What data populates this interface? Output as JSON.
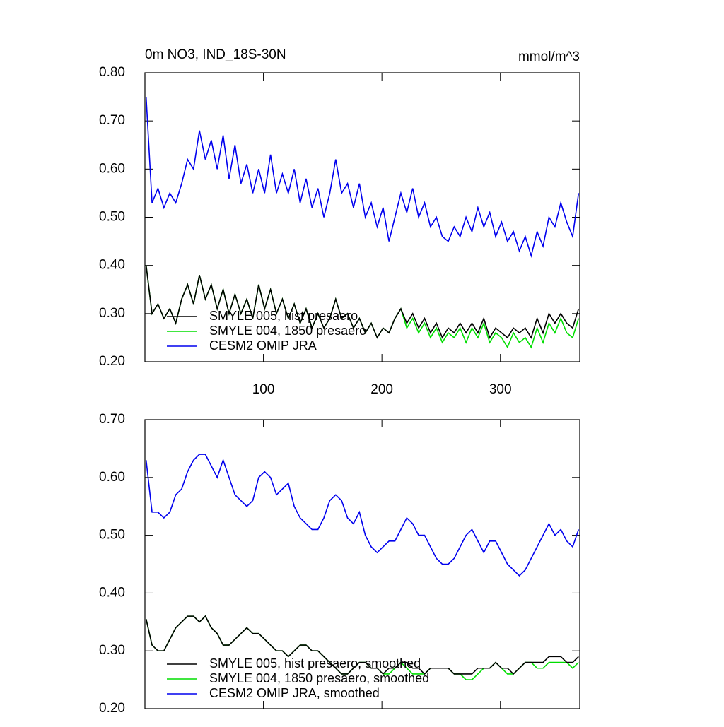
{
  "chart_data": [
    {
      "type": "line",
      "title": "0m NO3, IND_18S-30N",
      "units": "mmol/m^3",
      "x": [
        1,
        6,
        11,
        16,
        21,
        26,
        31,
        36,
        41,
        46,
        51,
        56,
        61,
        66,
        71,
        76,
        81,
        86,
        91,
        96,
        101,
        106,
        111,
        116,
        121,
        126,
        131,
        136,
        141,
        146,
        151,
        156,
        161,
        166,
        171,
        176,
        181,
        186,
        191,
        196,
        201,
        206,
        211,
        216,
        221,
        226,
        231,
        236,
        241,
        246,
        251,
        256,
        261,
        266,
        271,
        276,
        281,
        286,
        291,
        296,
        301,
        306,
        311,
        316,
        321,
        326,
        331,
        336,
        341,
        346,
        351,
        356,
        361,
        366
      ],
      "xlim": [
        0,
        367
      ],
      "xticks": [
        100,
        200,
        300
      ],
      "xtick_labels": true,
      "ylim": [
        0.2,
        0.8
      ],
      "yticks": [
        {
          "value": 0.2,
          "label": "0.20"
        },
        {
          "value": 0.3,
          "label": "0.30"
        },
        {
          "value": 0.4,
          "label": "0.40"
        },
        {
          "value": 0.5,
          "label": "0.50"
        },
        {
          "value": 0.6,
          "label": "0.60"
        },
        {
          "value": 0.7,
          "label": "0.70"
        },
        {
          "value": 0.8,
          "label": "0.80"
        }
      ],
      "legend": "lower left",
      "series": [
        {
          "name": "SMYLE 005, hist presaero",
          "color": "#000000",
          "values": [
            0.4,
            0.3,
            0.32,
            0.29,
            0.31,
            0.28,
            0.33,
            0.36,
            0.32,
            0.38,
            0.33,
            0.36,
            0.31,
            0.35,
            0.3,
            0.34,
            0.3,
            0.33,
            0.29,
            0.36,
            0.31,
            0.35,
            0.3,
            0.33,
            0.29,
            0.32,
            0.28,
            0.31,
            0.27,
            0.3,
            0.27,
            0.29,
            0.33,
            0.29,
            0.3,
            0.27,
            0.29,
            0.26,
            0.28,
            0.25,
            0.27,
            0.26,
            0.29,
            0.31,
            0.28,
            0.3,
            0.27,
            0.29,
            0.26,
            0.28,
            0.25,
            0.27,
            0.26,
            0.28,
            0.26,
            0.28,
            0.26,
            0.29,
            0.25,
            0.27,
            0.26,
            0.25,
            0.27,
            0.26,
            0.27,
            0.25,
            0.29,
            0.26,
            0.3,
            0.28,
            0.3,
            0.28,
            0.27,
            0.31
          ]
        },
        {
          "name": "SMYLE 004, 1850 presaero",
          "color": "#00dd00",
          "values": [
            0.4,
            0.3,
            0.32,
            0.29,
            0.31,
            0.28,
            0.33,
            0.36,
            0.32,
            0.38,
            0.33,
            0.36,
            0.31,
            0.35,
            0.3,
            0.34,
            0.3,
            0.33,
            0.29,
            0.36,
            0.31,
            0.35,
            0.3,
            0.33,
            0.29,
            0.32,
            0.28,
            0.31,
            0.27,
            0.3,
            0.27,
            0.29,
            0.33,
            0.29,
            0.3,
            0.27,
            0.29,
            0.26,
            0.28,
            0.25,
            0.27,
            0.26,
            0.29,
            0.31,
            0.27,
            0.29,
            0.26,
            0.28,
            0.25,
            0.27,
            0.24,
            0.26,
            0.25,
            0.27,
            0.24,
            0.27,
            0.25,
            0.28,
            0.24,
            0.26,
            0.25,
            0.23,
            0.26,
            0.24,
            0.25,
            0.23,
            0.27,
            0.24,
            0.28,
            0.26,
            0.29,
            0.26,
            0.25,
            0.29
          ]
        },
        {
          "name": "CESM2 OMIP JRA",
          "color": "#0000ee",
          "values": [
            0.75,
            0.53,
            0.56,
            0.52,
            0.55,
            0.53,
            0.57,
            0.62,
            0.6,
            0.68,
            0.62,
            0.66,
            0.6,
            0.67,
            0.58,
            0.65,
            0.57,
            0.61,
            0.55,
            0.6,
            0.55,
            0.63,
            0.55,
            0.59,
            0.55,
            0.6,
            0.53,
            0.58,
            0.52,
            0.56,
            0.5,
            0.55,
            0.62,
            0.55,
            0.57,
            0.52,
            0.57,
            0.5,
            0.53,
            0.48,
            0.52,
            0.45,
            0.5,
            0.55,
            0.51,
            0.56,
            0.5,
            0.53,
            0.48,
            0.5,
            0.46,
            0.45,
            0.48,
            0.46,
            0.5,
            0.47,
            0.52,
            0.48,
            0.51,
            0.46,
            0.49,
            0.45,
            0.47,
            0.43,
            0.46,
            0.42,
            0.47,
            0.44,
            0.5,
            0.48,
            0.53,
            0.49,
            0.46,
            0.55
          ]
        }
      ]
    },
    {
      "type": "line",
      "x": [
        1,
        6,
        11,
        16,
        21,
        26,
        31,
        36,
        41,
        46,
        51,
        56,
        61,
        66,
        71,
        76,
        81,
        86,
        91,
        96,
        101,
        106,
        111,
        116,
        121,
        126,
        131,
        136,
        141,
        146,
        151,
        156,
        161,
        166,
        171,
        176,
        181,
        186,
        191,
        196,
        201,
        206,
        211,
        216,
        221,
        226,
        231,
        236,
        241,
        246,
        251,
        256,
        261,
        266,
        271,
        276,
        281,
        286,
        291,
        296,
        301,
        306,
        311,
        316,
        321,
        326,
        331,
        336,
        341,
        346,
        351,
        356,
        361,
        366
      ],
      "xlim": [
        0,
        367
      ],
      "xticks": [
        100,
        200,
        300
      ],
      "xtick_labels": false,
      "ylim": [
        0.2,
        0.7
      ],
      "yticks": [
        {
          "value": 0.2,
          "label": "0.20"
        },
        {
          "value": 0.3,
          "label": "0.30"
        },
        {
          "value": 0.4,
          "label": "0.40"
        },
        {
          "value": 0.5,
          "label": "0.50"
        },
        {
          "value": 0.6,
          "label": "0.60"
        },
        {
          "value": 0.7,
          "label": "0.70"
        }
      ],
      "legend": "lower left",
      "series": [
        {
          "name": "SMYLE 005, hist presaero, smoothed",
          "color": "#000000",
          "values": [
            0.355,
            0.31,
            0.3,
            0.3,
            0.32,
            0.34,
            0.35,
            0.36,
            0.36,
            0.35,
            0.36,
            0.34,
            0.33,
            0.31,
            0.31,
            0.32,
            0.33,
            0.34,
            0.33,
            0.33,
            0.32,
            0.31,
            0.3,
            0.3,
            0.29,
            0.3,
            0.31,
            0.31,
            0.3,
            0.3,
            0.29,
            0.28,
            0.27,
            0.26,
            0.26,
            0.27,
            0.28,
            0.28,
            0.27,
            0.27,
            0.26,
            0.27,
            0.27,
            0.28,
            0.28,
            0.27,
            0.27,
            0.26,
            0.27,
            0.27,
            0.27,
            0.27,
            0.26,
            0.26,
            0.26,
            0.26,
            0.27,
            0.27,
            0.27,
            0.28,
            0.27,
            0.27,
            0.26,
            0.27,
            0.28,
            0.28,
            0.28,
            0.28,
            0.29,
            0.29,
            0.29,
            0.28,
            0.28,
            0.29
          ]
        },
        {
          "name": "SMYLE 004, 1850 presaero, smoothed",
          "color": "#00dd00",
          "values": [
            0.355,
            0.31,
            0.3,
            0.3,
            0.32,
            0.34,
            0.35,
            0.36,
            0.36,
            0.35,
            0.36,
            0.34,
            0.33,
            0.31,
            0.31,
            0.32,
            0.33,
            0.34,
            0.33,
            0.33,
            0.32,
            0.31,
            0.3,
            0.3,
            0.29,
            0.3,
            0.31,
            0.31,
            0.3,
            0.3,
            0.29,
            0.28,
            0.27,
            0.26,
            0.26,
            0.27,
            0.28,
            0.28,
            0.27,
            0.27,
            0.26,
            0.26,
            0.27,
            0.28,
            0.27,
            0.26,
            0.26,
            0.26,
            0.27,
            0.27,
            0.27,
            0.27,
            0.26,
            0.26,
            0.25,
            0.25,
            0.26,
            0.27,
            0.27,
            0.28,
            0.27,
            0.26,
            0.26,
            0.27,
            0.28,
            0.28,
            0.27,
            0.27,
            0.28,
            0.28,
            0.28,
            0.28,
            0.27,
            0.28
          ]
        },
        {
          "name": "CESM2 OMIP JRA, smoothed",
          "color": "#0000ee",
          "values": [
            0.63,
            0.54,
            0.54,
            0.53,
            0.54,
            0.57,
            0.58,
            0.61,
            0.63,
            0.64,
            0.64,
            0.62,
            0.6,
            0.63,
            0.6,
            0.57,
            0.56,
            0.55,
            0.56,
            0.6,
            0.61,
            0.6,
            0.57,
            0.58,
            0.59,
            0.55,
            0.53,
            0.52,
            0.51,
            0.51,
            0.53,
            0.56,
            0.57,
            0.56,
            0.53,
            0.52,
            0.54,
            0.5,
            0.48,
            0.47,
            0.48,
            0.49,
            0.49,
            0.51,
            0.53,
            0.52,
            0.5,
            0.5,
            0.48,
            0.46,
            0.45,
            0.45,
            0.46,
            0.48,
            0.5,
            0.51,
            0.49,
            0.47,
            0.49,
            0.49,
            0.47,
            0.45,
            0.44,
            0.43,
            0.44,
            0.46,
            0.48,
            0.5,
            0.52,
            0.5,
            0.51,
            0.49,
            0.48,
            0.51
          ]
        }
      ]
    }
  ]
}
